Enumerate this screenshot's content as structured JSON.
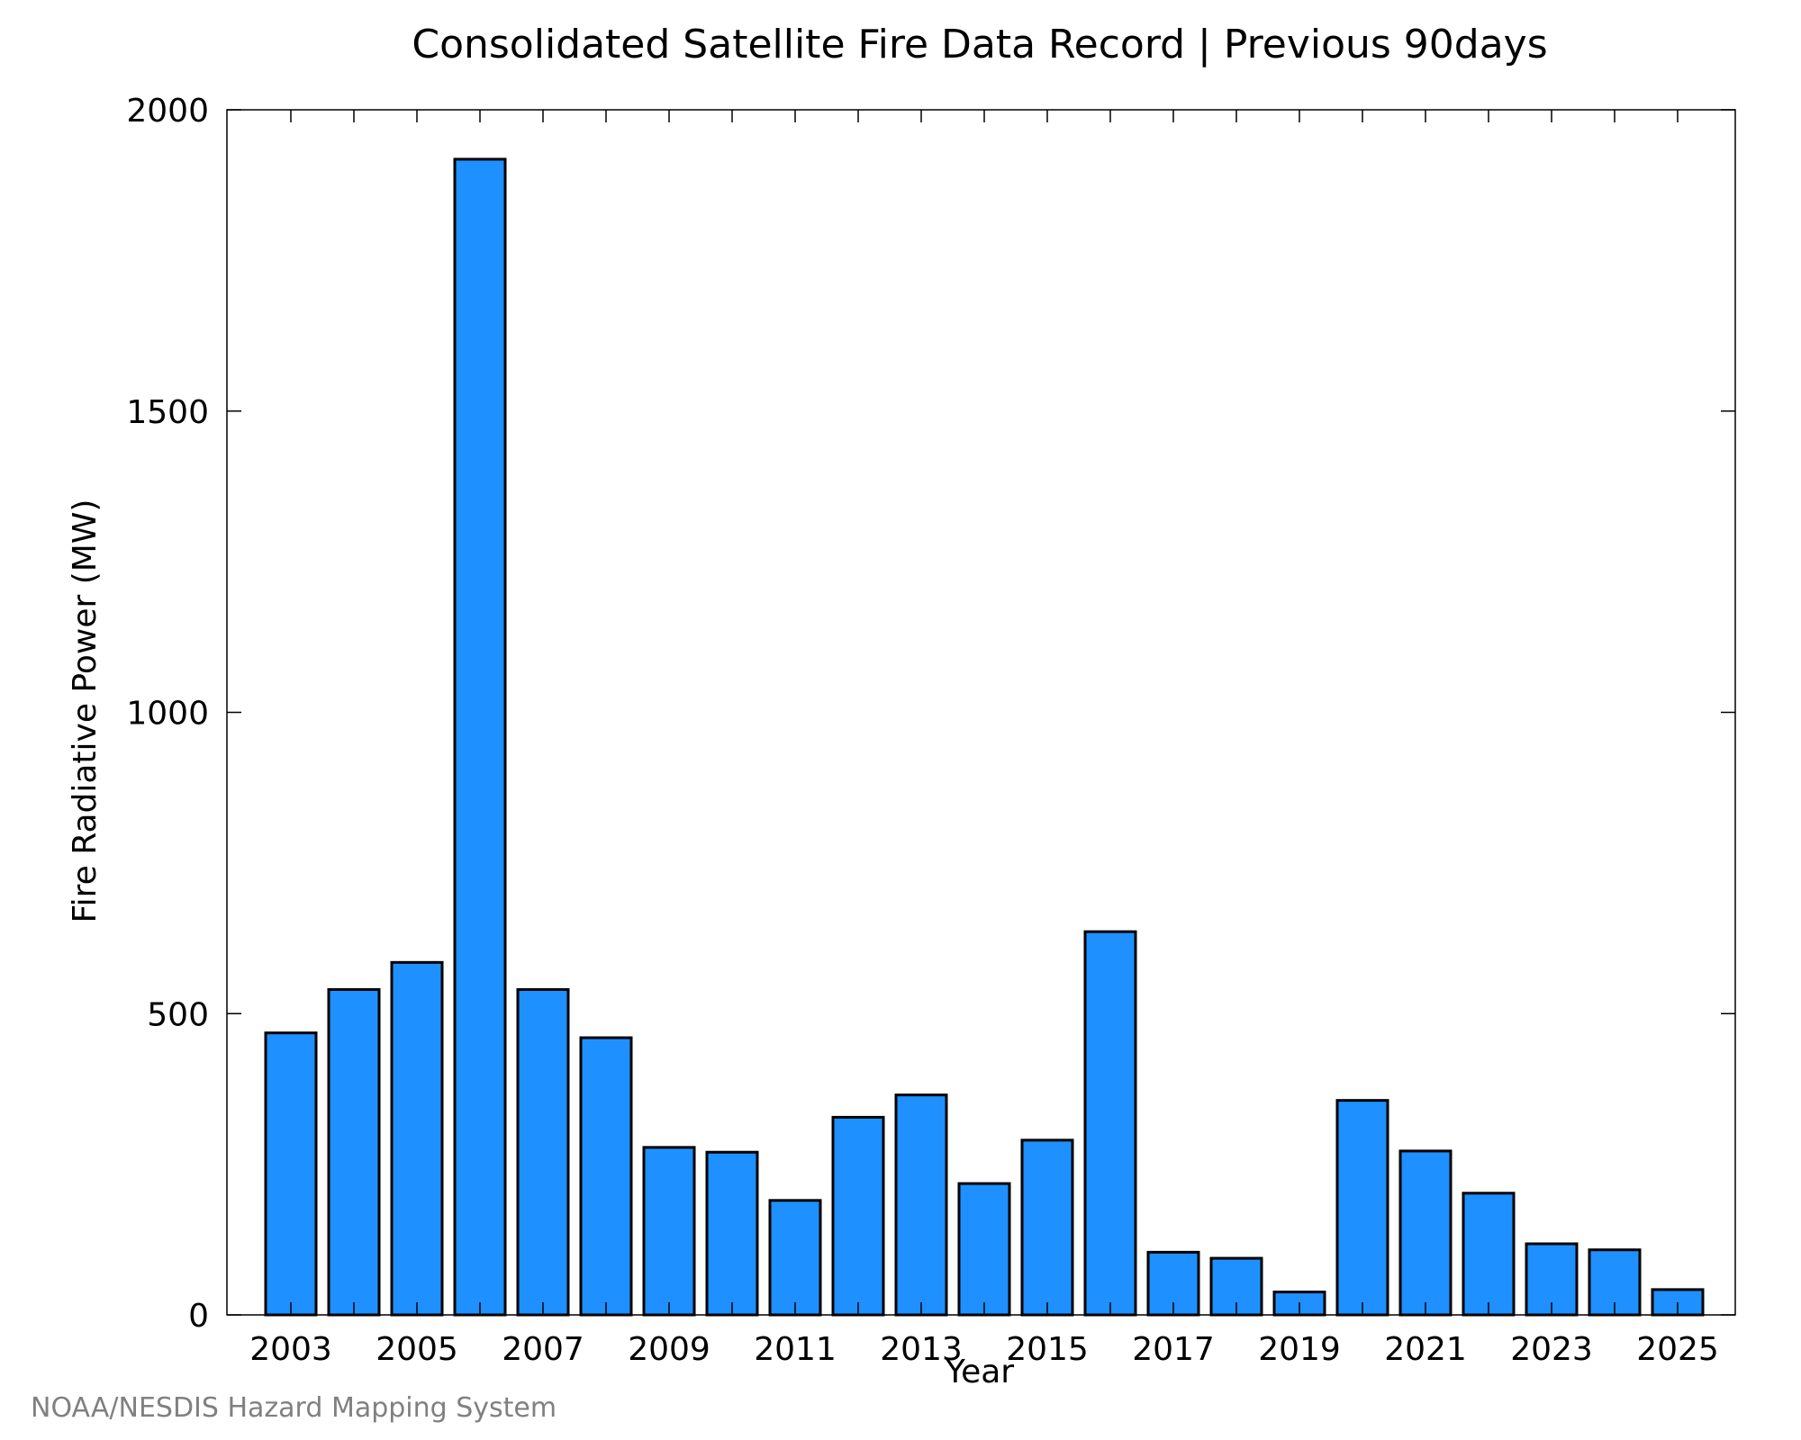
{
  "chart_data": {
    "type": "bar",
    "title": "Consolidated Satellite Fire Data Record | Previous 90days",
    "xlabel": "Year",
    "ylabel": "Fire Radiative Power (MW)",
    "ylim": [
      0,
      2000
    ],
    "yticks": [
      "0",
      "500",
      "1000",
      "1500",
      "2000"
    ],
    "xticks": [
      "2003",
      "2005",
      "2007",
      "2009",
      "2011",
      "2013",
      "2015",
      "2017",
      "2019",
      "2021",
      "2023",
      "2025"
    ],
    "grid": false,
    "categories": [
      "2003",
      "2004",
      "2005",
      "2006",
      "2007",
      "2008",
      "2009",
      "2010",
      "2011",
      "2012",
      "2013",
      "2014",
      "2015",
      "2016",
      "2017",
      "2018",
      "2019",
      "2020",
      "2021",
      "2022",
      "2023",
      "2024",
      "2025"
    ],
    "values": [
      468,
      540,
      585,
      1918,
      540,
      460,
      278,
      270,
      190,
      328,
      365,
      218,
      290,
      636,
      104,
      94,
      38,
      356,
      272,
      202,
      118,
      108,
      42
    ],
    "colors": {
      "bar_fill": "#1e90ff",
      "bar_edge": "#000000",
      "axis": "#000000"
    }
  },
  "credit": "NOAA/NESDIS Hazard Mapping System"
}
